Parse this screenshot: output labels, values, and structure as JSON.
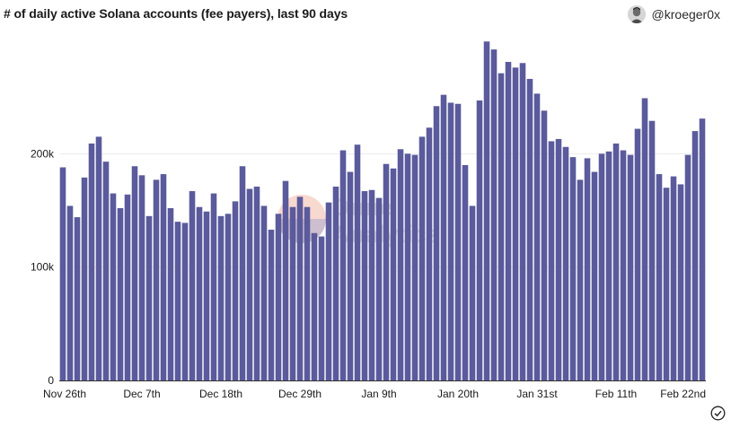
{
  "header": {
    "title": "# of daily active Solana accounts (fee payers), last 90 days",
    "author": "@kroeger0x"
  },
  "watermark": {
    "line1": "Dune",
    "line2": "Analytics"
  },
  "colors": {
    "bar": "#5a5a9c",
    "grid": "#ececec",
    "axis": "#333333"
  },
  "chart_data": {
    "type": "bar",
    "title": "# of daily active Solana accounts (fee payers), last 90 days",
    "xlabel": "",
    "ylabel": "",
    "ylim": [
      0,
      300000
    ],
    "yticks": [
      0,
      100000,
      200000
    ],
    "ytick_labels": [
      "0",
      "100k",
      "200k"
    ],
    "xtick_labels": [
      "Nov 26th",
      "Dec 7th",
      "Dec 18th",
      "Dec 29th",
      "Jan 9th",
      "Jan 20th",
      "Jan 31st",
      "Feb 11th",
      "Feb 22nd"
    ],
    "xtick_indices": [
      0,
      11,
      22,
      33,
      44,
      55,
      66,
      77,
      88
    ],
    "grid": true,
    "values": [
      188000,
      154000,
      144000,
      179000,
      209000,
      215000,
      193000,
      165000,
      152000,
      164000,
      189000,
      181000,
      145000,
      177000,
      182000,
      152000,
      140000,
      139000,
      167000,
      153000,
      149000,
      165000,
      145000,
      147000,
      158000,
      189000,
      169000,
      171000,
      154000,
      133000,
      147000,
      176000,
      153000,
      162000,
      153000,
      130000,
      127000,
      157000,
      171000,
      203000,
      184000,
      208000,
      167000,
      168000,
      161000,
      191000,
      187000,
      204000,
      200000,
      199000,
      215000,
      223000,
      242000,
      252000,
      245000,
      244000,
      190000,
      154000,
      247000,
      299000,
      292000,
      271000,
      281000,
      276000,
      280000,
      266000,
      253000,
      238000,
      211000,
      213000,
      206000,
      197000,
      177000,
      196000,
      184000,
      200000,
      202000,
      209000,
      203000,
      199000,
      222000,
      249000,
      229000,
      182000,
      170000,
      180000,
      173000,
      199000,
      220000,
      231000
    ]
  }
}
